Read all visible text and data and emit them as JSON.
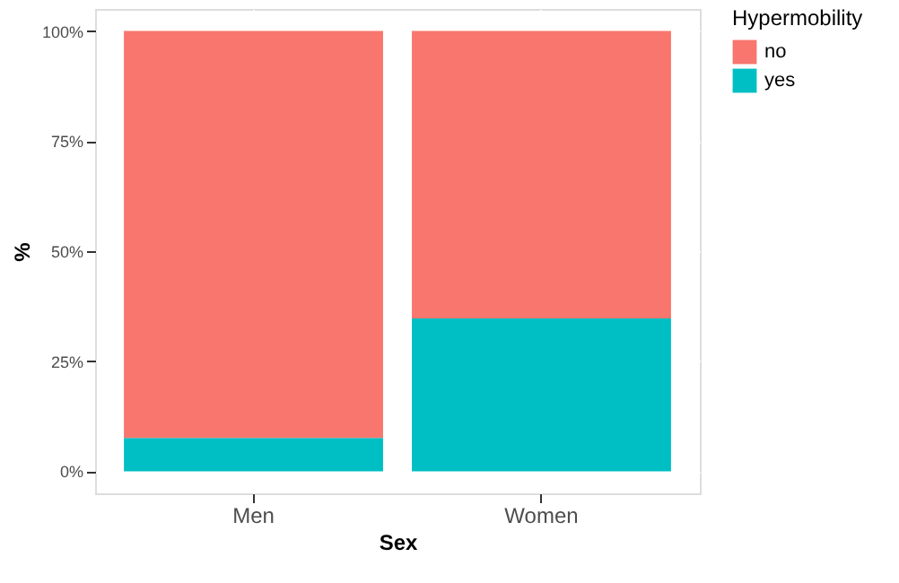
{
  "chart_data": {
    "type": "bar",
    "stacked": true,
    "categories": [
      "Men",
      "Women"
    ],
    "series": [
      {
        "name": "yes",
        "color": "#00bfc4",
        "values": [
          7.6,
          34.7
        ]
      },
      {
        "name": "no",
        "color": "#f8766d",
        "values": [
          92.4,
          65.3
        ]
      }
    ],
    "xlabel": "Sex",
    "ylabel": "%",
    "legend_title": "Hypermobility",
    "ylim": [
      -5,
      105
    ],
    "yticks": [
      {
        "value": 0,
        "label": "0%"
      },
      {
        "value": 25,
        "label": "25%"
      },
      {
        "value": 50,
        "label": "50%"
      },
      {
        "value": 75,
        "label": "75%"
      },
      {
        "value": 100,
        "label": "100%"
      }
    ],
    "grid": true,
    "legend": "right"
  }
}
